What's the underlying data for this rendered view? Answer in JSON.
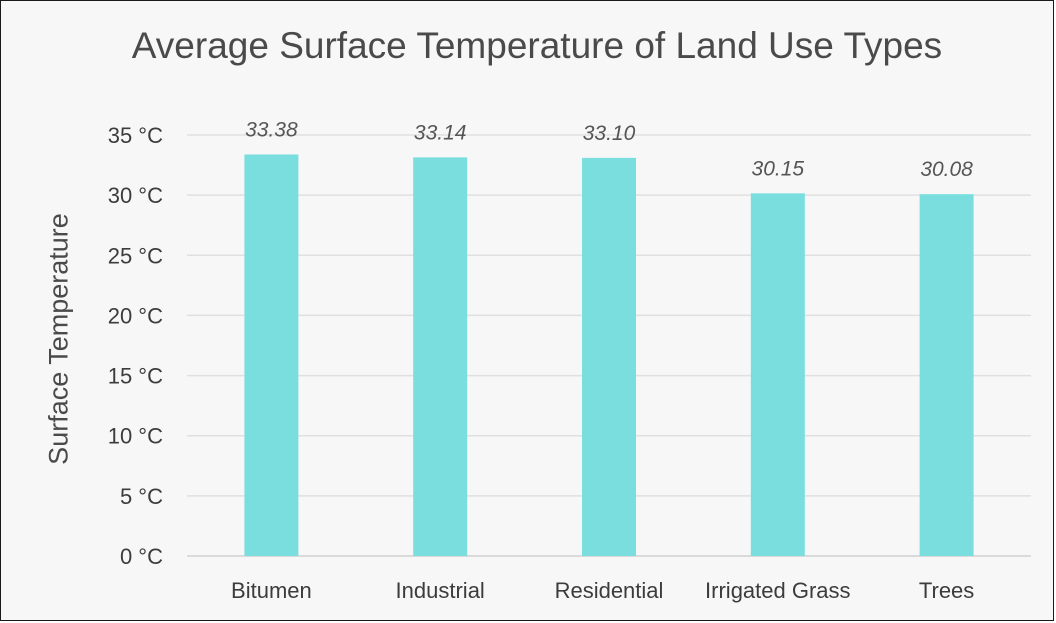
{
  "chart_data": {
    "type": "bar",
    "title": "Average Surface Temperature of Land Use Types",
    "xlabel": "",
    "ylabel": "Surface Temperature",
    "categories": [
      "Bitumen",
      "Industrial",
      "Residential",
      "Irrigated Grass",
      "Trees"
    ],
    "values": [
      33.38,
      33.14,
      33.1,
      30.15,
      30.08
    ],
    "data_labels": [
      "33.38",
      "33.14",
      "33.10",
      "30.15",
      "30.08"
    ],
    "ylim": [
      0,
      35
    ],
    "yticks": [
      0,
      5,
      10,
      15,
      20,
      25,
      30,
      35
    ],
    "ytick_labels": [
      "0 °C",
      "5 °C",
      "10 °C",
      "15 °C",
      "20 °C",
      "25 °C",
      "30 °C",
      "35 °C"
    ],
    "grid": true,
    "legend": "none",
    "bar_color": "#7adedf"
  }
}
